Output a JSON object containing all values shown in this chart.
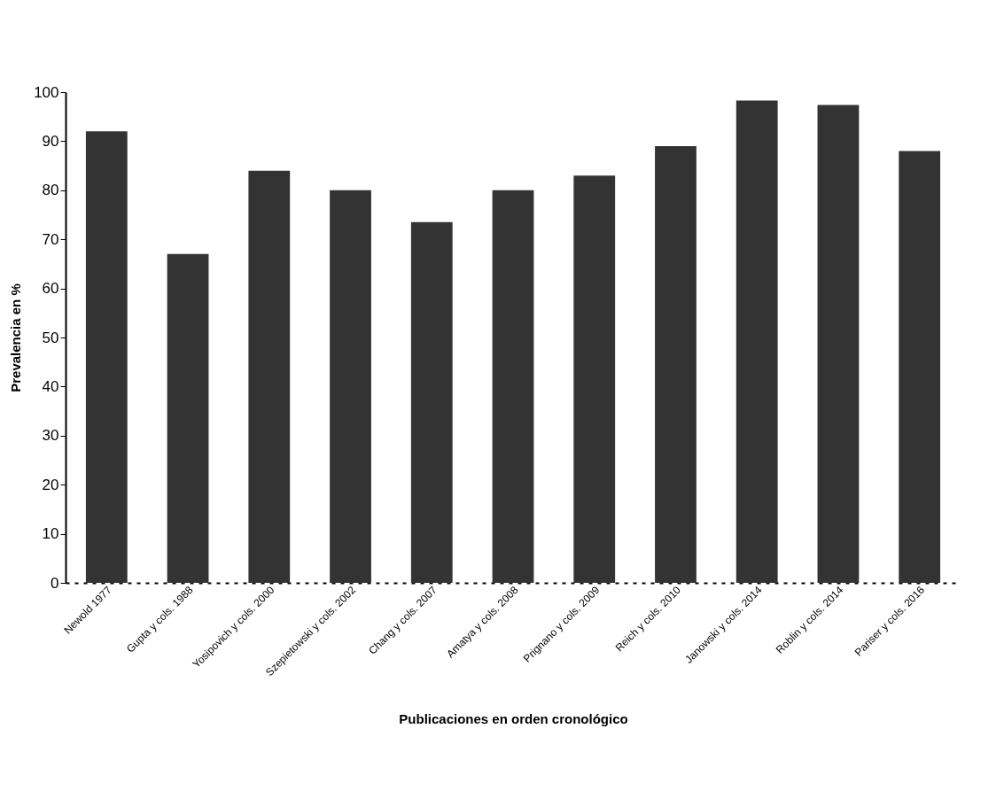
{
  "chart_data": {
    "type": "bar",
    "categories": [
      "Newold 1977",
      "Gupta y cols. 1988",
      "Yosipovich y cols. 2000",
      "Szepietowski y cols. 2002",
      "Chang y cols. 2007",
      "Amatya y cols. 2008",
      "Prignano y cols. 2009",
      "Reich y cols. 2010",
      "Janowski y cols. 2014",
      "Roblin y cols. 2014",
      "Pariser y cols. 2016"
    ],
    "values": [
      92,
      67,
      84,
      80,
      73.5,
      80,
      83,
      89,
      98.3,
      97.4,
      88
    ],
    "color": "#333333",
    "xlabel": "Publicaciones en orden cronológico",
    "ylabel": "Prevalencia en %",
    "ylim": [
      0,
      100
    ],
    "yticks": [
      0,
      10,
      20,
      30,
      40,
      50,
      60,
      70,
      80,
      90,
      100
    ],
    "grid": false
  }
}
